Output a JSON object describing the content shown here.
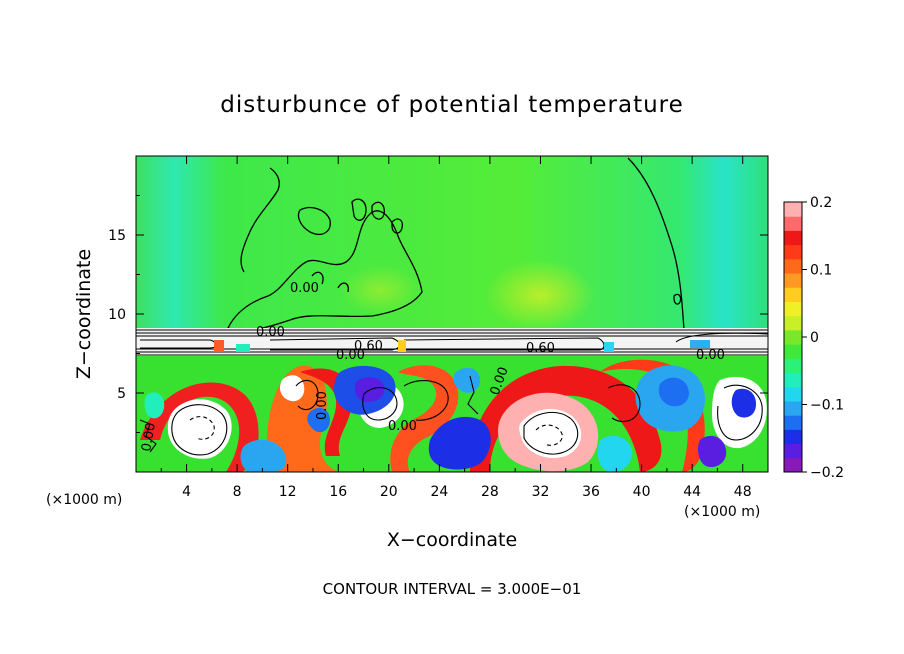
{
  "chart_data": {
    "type": "heatmap",
    "title": "disturbunce of potential temperature",
    "xlabel": "X−coordinate",
    "ylabel": "Z−coordinate",
    "x_unit_left": "(×1000 m)",
    "x_unit_right": "(×1000 m)",
    "xlim": [
      0,
      50
    ],
    "ylim": [
      0,
      20
    ],
    "x_ticks": [
      4,
      8,
      12,
      16,
      20,
      24,
      28,
      32,
      36,
      40,
      44,
      48
    ],
    "x_tick_labels": [
      "4",
      "8",
      "12",
      "16",
      "20",
      "24",
      "28",
      "32",
      "36",
      "40",
      "44",
      "48"
    ],
    "y_ticks": [
      5,
      10,
      15
    ],
    "y_tick_labels": [
      "5",
      "10",
      "15"
    ],
    "colorbar": {
      "min": -0.2,
      "max": 0.2,
      "ticks": [
        0.2,
        0.1,
        0,
        -0.1,
        -0.2
      ],
      "tick_labels": [
        "0.2",
        "0.1",
        "0",
        "−0.1",
        "−0.2"
      ],
      "colors": [
        "#8a1ab8",
        "#5a1ee0",
        "#1c2ee6",
        "#1e6ef2",
        "#2aa6f0",
        "#22d6f0",
        "#22eebc",
        "#2bf07a",
        "#3fe83a",
        "#7ae82a",
        "#c8f028",
        "#f0f028",
        "#ffcc22",
        "#ff9922",
        "#ff6a1a",
        "#ff3a18",
        "#ee1818",
        "#ff6a6a",
        "#ffb0b0"
      ]
    },
    "contour_labels": [
      "0.00",
      "0.00",
      "0.00",
      "0.60",
      "0.60",
      "0.00",
      "0.00",
      "0.00",
      "0.00",
      "0.00"
    ],
    "contour_interval_text": "CONTOUR INTERVAL = 3.000E−01",
    "background_field": "0",
    "grid": false
  }
}
